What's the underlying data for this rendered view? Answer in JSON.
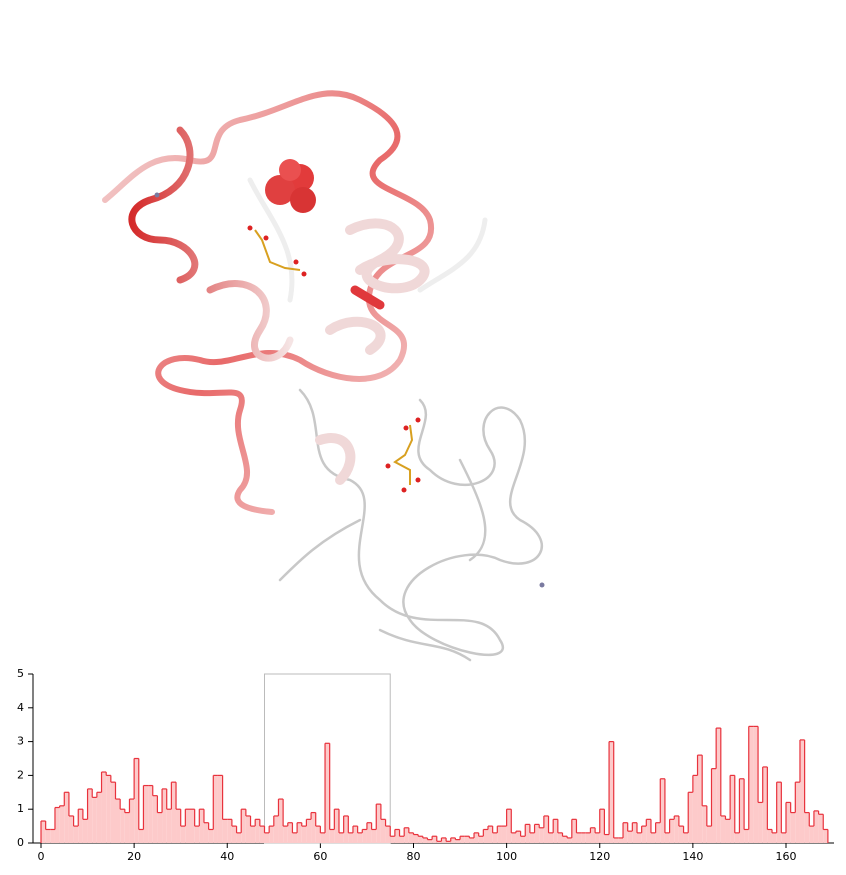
{
  "chart_data": {
    "type": "step",
    "xlim": [
      0,
      169
    ],
    "xticks": [
      0,
      20,
      40,
      60,
      80,
      100,
      120,
      140,
      160
    ],
    "ylim": [
      0,
      5
    ],
    "yticks": [
      0,
      1,
      2,
      3,
      4,
      5
    ],
    "color": "#e8323c",
    "fill": "#fdcaca",
    "selection": [
      48,
      75
    ],
    "values": [
      0.65,
      0.4,
      0.4,
      1.05,
      1.1,
      1.5,
      0.8,
      0.5,
      1.0,
      0.7,
      1.6,
      1.35,
      1.5,
      2.1,
      2.0,
      1.8,
      1.3,
      1.0,
      0.9,
      1.3,
      2.5,
      0.4,
      1.7,
      1.7,
      1.4,
      0.9,
      1.6,
      1.0,
      1.8,
      1.0,
      0.5,
      1.0,
      1.0,
      0.5,
      1.0,
      0.6,
      0.4,
      2.0,
      2.0,
      0.7,
      0.7,
      0.5,
      0.3,
      1.0,
      0.8,
      0.5,
      0.7,
      0.5,
      0.3,
      0.5,
      0.8,
      1.3,
      0.5,
      0.6,
      0.3,
      0.6,
      0.5,
      0.7,
      0.9,
      0.5,
      0.3,
      2.95,
      0.4,
      1.0,
      0.3,
      0.8,
      0.3,
      0.5,
      0.3,
      0.4,
      0.6,
      0.4,
      1.15,
      0.7,
      0.5,
      0.2,
      0.4,
      0.2,
      0.45,
      0.3,
      0.25,
      0.2,
      0.15,
      0.1,
      0.2,
      0.05,
      0.15,
      0.05,
      0.15,
      0.1,
      0.2,
      0.2,
      0.15,
      0.3,
      0.2,
      0.4,
      0.5,
      0.3,
      0.5,
      0.5,
      1.0,
      0.3,
      0.35,
      0.2,
      0.55,
      0.3,
      0.55,
      0.45,
      0.8,
      0.3,
      0.7,
      0.3,
      0.2,
      0.15,
      0.7,
      0.3,
      0.3,
      0.3,
      0.45,
      0.3,
      1.0,
      0.25,
      3.0,
      0.15,
      0.15,
      0.6,
      0.35,
      0.6,
      0.3,
      0.5,
      0.7,
      0.3,
      0.6,
      1.9,
      0.3,
      0.7,
      0.8,
      0.5,
      0.3,
      1.5,
      2.0,
      2.6,
      1.1,
      0.5,
      2.2,
      3.4,
      0.8,
      0.7,
      2.0,
      0.3,
      1.9,
      0.4,
      3.45,
      3.45,
      1.2,
      2.25,
      0.4,
      0.3,
      1.8,
      0.3,
      1.2,
      0.9,
      1.8,
      3.05,
      0.9,
      0.5,
      0.95,
      0.85,
      0.4
    ]
  }
}
